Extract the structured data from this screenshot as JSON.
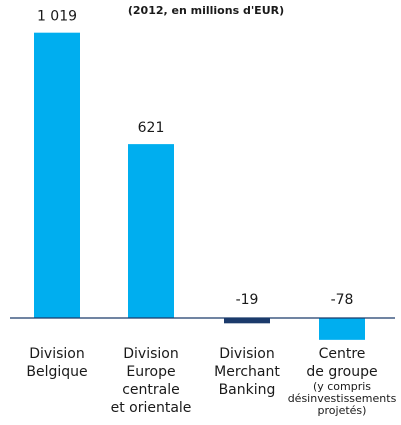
{
  "chart_data": {
    "type": "bar",
    "title": "(2012, en millions d'EUR)",
    "categories": [
      "Division\nBelgique",
      "Division\nEurope\ncentrale\net orientale",
      "Division\nMerchant\nBanking",
      "Centre\nde groupe"
    ],
    "category_notes": [
      null,
      null,
      null,
      "(y compris\ndésinvestissements\nprojetés)"
    ],
    "values": [
      1019,
      621,
      -19,
      -78
    ],
    "value_labels": [
      "1 019",
      "621",
      "-19",
      "-78"
    ],
    "colors": [
      "#00aeef",
      "#00aeef",
      "#1b3a6b",
      "#00aeef"
    ],
    "ylim": [
      -300,
      1100
    ]
  }
}
